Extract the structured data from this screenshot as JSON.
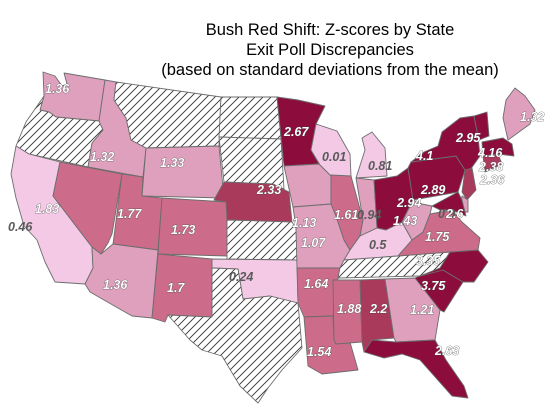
{
  "title": {
    "line1": "Bush Red Shift:  Z-scores by State",
    "line2": "Exit Poll Discrepancies",
    "line3": "(based on standard deviations from the mean)"
  },
  "colors": {
    "none": "hatched",
    "c1": "#f3c9e6",
    "c2": "#dea0bd",
    "c3": "#cc6c8a",
    "c4": "#a93a5b",
    "c5": "#8c0c3c"
  },
  "states": [
    {
      "id": "WA",
      "value": "1.36",
      "z": 1.36
    },
    {
      "id": "OR",
      "value": null,
      "z": null
    },
    {
      "id": "CA",
      "value": "0.46",
      "z": 0.46
    },
    {
      "id": "ID",
      "value": "1.32",
      "z": 1.32
    },
    {
      "id": "NV",
      "value": "1.83",
      "z": 1.83
    },
    {
      "id": "MT",
      "value": null,
      "z": null
    },
    {
      "id": "WY",
      "value": "1.33",
      "z": 1.33
    },
    {
      "id": "UT",
      "value": "1.77",
      "z": 1.77
    },
    {
      "id": "AZ",
      "value": "1.36",
      "z": 1.36
    },
    {
      "id": "CO",
      "value": "1.73",
      "z": 1.73
    },
    {
      "id": "NM",
      "value": "1.7",
      "z": 1.7
    },
    {
      "id": "ND",
      "value": null,
      "z": null
    },
    {
      "id": "SD",
      "value": null,
      "z": null
    },
    {
      "id": "NE",
      "value": "2.33",
      "z": 2.33
    },
    {
      "id": "KS",
      "value": null,
      "z": null
    },
    {
      "id": "OK",
      "value": "0.24",
      "z": 0.24
    },
    {
      "id": "TX",
      "value": null,
      "z": null
    },
    {
      "id": "MN",
      "value": "2.67",
      "z": 2.67
    },
    {
      "id": "IA",
      "value": "1.13",
      "z": 1.13
    },
    {
      "id": "MO",
      "value": "1.07",
      "z": 1.07
    },
    {
      "id": "AR",
      "value": "1.64",
      "z": 1.64
    },
    {
      "id": "LA",
      "value": "1.54",
      "z": 1.54
    },
    {
      "id": "WI",
      "value": "0.01",
      "z": 0.01
    },
    {
      "id": "IL",
      "value": "1.61",
      "z": 1.61
    },
    {
      "id": "MI",
      "value": "0.81",
      "z": 0.81
    },
    {
      "id": "IN",
      "value": "0.94",
      "z": 0.94
    },
    {
      "id": "OH",
      "value": "2.94",
      "z": 2.94
    },
    {
      "id": "KY",
      "value": "0.5",
      "z": 0.5
    },
    {
      "id": "TN",
      "value": null,
      "z": null
    },
    {
      "id": "MS",
      "value": "1.88",
      "z": 1.88
    },
    {
      "id": "AL",
      "value": "2.2",
      "z": 2.2
    },
    {
      "id": "GA",
      "value": "1.21",
      "z": 1.21
    },
    {
      "id": "FL",
      "value": "2.63",
      "z": 2.63
    },
    {
      "id": "SC",
      "value": "3.75",
      "z": 3.75
    },
    {
      "id": "NC",
      "value": "3.35",
      "z": 3.35
    },
    {
      "id": "VA",
      "value": "1.75",
      "z": 1.75
    },
    {
      "id": "WV",
      "value": "1.43",
      "z": 1.43
    },
    {
      "id": "PA",
      "value": "2.89",
      "z": 2.89
    },
    {
      "id": "NY",
      "value": "4.1",
      "z": 4.1
    },
    {
      "id": "VT",
      "value": "2.95",
      "z": 2.95
    },
    {
      "id": "ME",
      "value": "1.32",
      "z": 1.32
    },
    {
      "id": "MA",
      "value": "4.16",
      "z": 4.16
    },
    {
      "id": "NJ",
      "value": "2.36",
      "z": 2.36
    },
    {
      "id": "CT",
      "value": "2.38",
      "z": 2.38
    },
    {
      "id": "DE",
      "value": "0.9",
      "z": 0.9
    },
    {
      "id": "MD",
      "value": "2.6",
      "z": 2.6
    }
  ]
}
